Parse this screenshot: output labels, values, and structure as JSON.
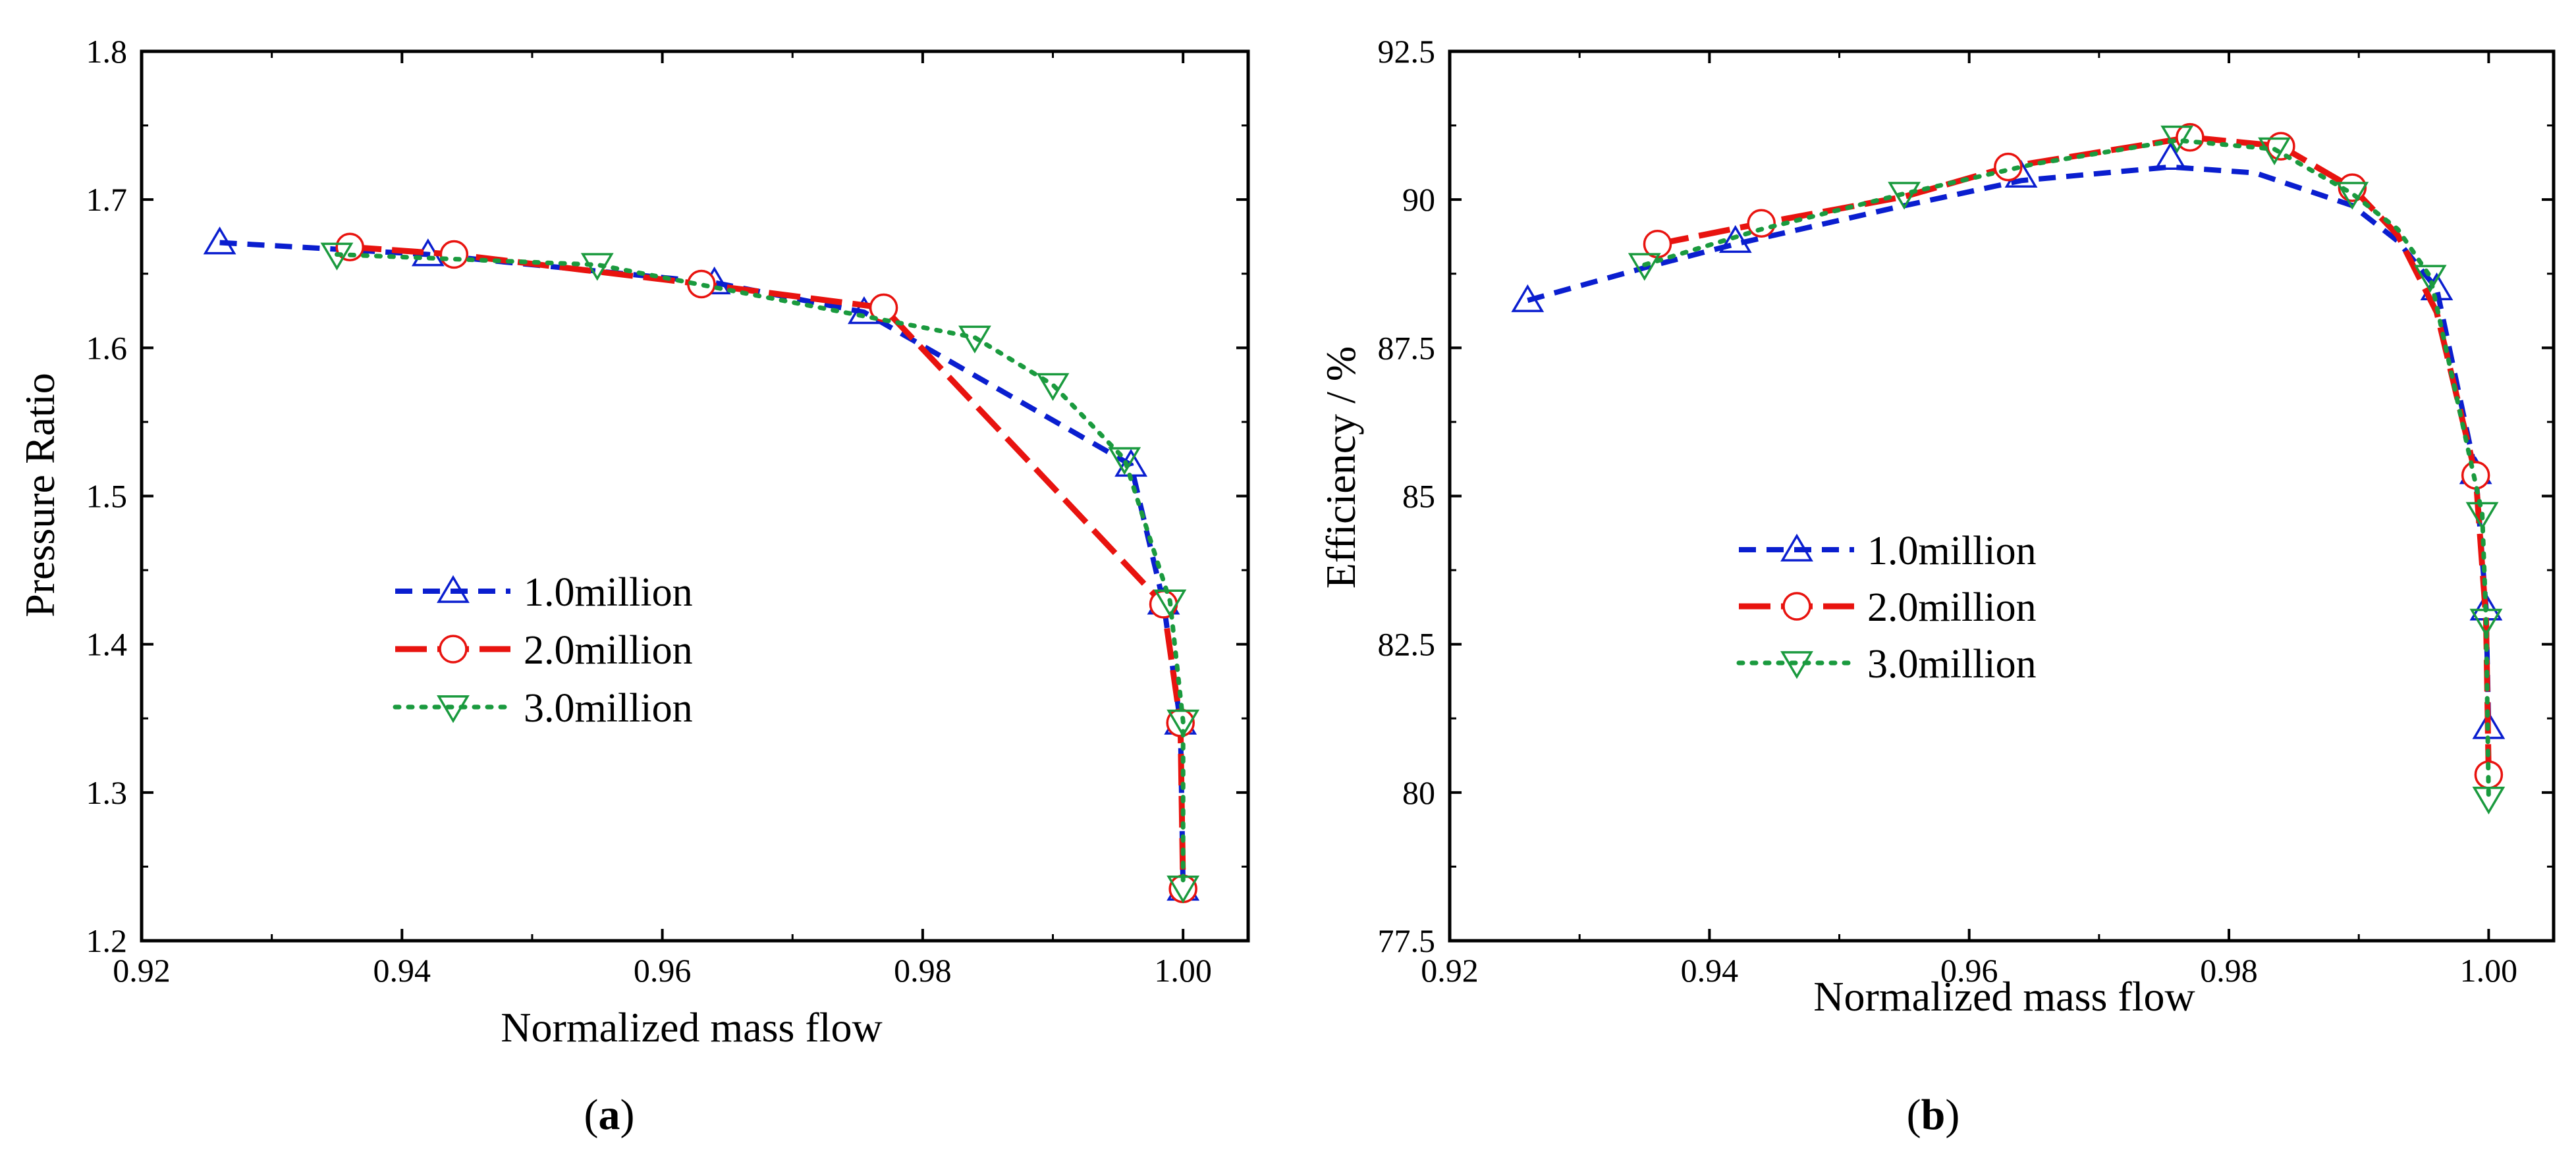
{
  "chart_data": [
    {
      "type": "line",
      "panel_label": "a",
      "xlabel": "Normalized mass flow",
      "ylabel": "Pressure Ratio",
      "xlim": [
        0.92,
        1.005
      ],
      "ylim": [
        1.2,
        1.8
      ],
      "xticks": [
        "0.92",
        "0.94",
        "0.96",
        "0.98",
        "1.00"
      ],
      "yticks": [
        "1.2",
        "1.3",
        "1.4",
        "1.5",
        "1.6",
        "1.7",
        "1.8"
      ],
      "grid": false,
      "legend_position": "center",
      "series": [
        {
          "name": "1.0million",
          "color": "#0a1ecf",
          "dash": "dashed",
          "marker": "triangle-up",
          "x": [
            0.926,
            0.942,
            0.964,
            0.9755,
            0.996,
            0.9985,
            0.9998,
            1.0
          ],
          "y": [
            1.671,
            1.663,
            1.644,
            1.624,
            1.521,
            1.428,
            1.347,
            1.235
          ]
        },
        {
          "name": "2.0million",
          "color": "#e8130f",
          "dash": "long-dash",
          "marker": "circle",
          "x": [
            0.936,
            0.944,
            0.963,
            0.977,
            0.9985,
            0.9998,
            1.0
          ],
          "y": [
            1.668,
            1.663,
            1.643,
            1.627,
            1.427,
            1.347,
            1.235
          ]
        },
        {
          "name": "3.0million",
          "color": "#1a9a3e",
          "dash": "dotted",
          "marker": "triangle-down",
          "x": [
            0.935,
            0.955,
            0.984,
            0.99,
            0.9955,
            0.999,
            1.0,
            1.0
          ],
          "y": [
            1.663,
            1.656,
            1.607,
            1.575,
            1.525,
            1.429,
            1.348,
            1.236
          ]
        }
      ]
    },
    {
      "type": "line",
      "panel_label": "b",
      "xlabel": "Normalized mass flow",
      "ylabel": "Efficiency / %",
      "xlim": [
        0.92,
        1.005
      ],
      "ylim": [
        77.5,
        92.5
      ],
      "xticks": [
        "0.92",
        "0.94",
        "0.96",
        "0.98",
        "1.00"
      ],
      "yticks": [
        "77.5",
        "80",
        "82.5",
        "85",
        "87.5",
        "90",
        "92.5"
      ],
      "grid": false,
      "legend_position": "center-left",
      "series": [
        {
          "name": "1.0million",
          "color": "#0a1ecf",
          "dash": "dashed",
          "marker": "triangle-up",
          "x": [
            0.926,
            0.942,
            0.964,
            0.9755,
            0.996,
            0.999,
            0.9998,
            1.0
          ],
          "y": [
            88.3,
            89.3,
            90.4,
            90.7,
            88.5,
            85.4,
            83.1,
            81.1
          ],
          "curve": [
            [
              0.926,
              88.3
            ],
            [
              0.935,
              88.85
            ],
            [
              0.942,
              89.25
            ],
            [
              0.954,
              89.85
            ],
            [
              0.964,
              90.32
            ],
            [
              0.9755,
              90.55
            ],
            [
              0.982,
              90.45
            ],
            [
              0.9895,
              89.9
            ],
            [
              0.993,
              89.3
            ],
            [
              0.996,
              88.5
            ],
            [
              0.999,
              85.4
            ],
            [
              0.9998,
              83.1
            ],
            [
              1.0,
              81.1
            ]
          ]
        },
        {
          "name": "2.0million",
          "color": "#e8130f",
          "dash": "long-dash",
          "marker": "circle",
          "x": [
            0.936,
            0.944,
            0.963,
            0.977,
            0.984,
            0.9895,
            0.999,
            1.0
          ],
          "y": [
            89.25,
            89.6,
            90.55,
            91.05,
            90.9,
            90.2,
            85.35,
            80.3
          ],
          "curve": [
            [
              0.936,
              89.25
            ],
            [
              0.944,
              89.6
            ],
            [
              0.955,
              90.05
            ],
            [
              0.963,
              90.55
            ],
            [
              0.977,
              91.05
            ],
            [
              0.984,
              90.9
            ],
            [
              0.9895,
              90.2
            ],
            [
              0.993,
              89.4
            ],
            [
              0.996,
              88.1
            ],
            [
              0.999,
              85.35
            ],
            [
              0.9998,
              82.9
            ],
            [
              1.0,
              80.3
            ]
          ]
        },
        {
          "name": "3.0million",
          "color": "#1a9a3e",
          "dash": "dotted",
          "marker": "triangle-down",
          "x": [
            0.935,
            0.955,
            0.976,
            0.9835,
            0.9895,
            0.9955,
            0.9995,
            0.9998,
            1.0
          ],
          "y": [
            88.9,
            90.1,
            91.05,
            90.85,
            90.1,
            88.7,
            84.7,
            82.9,
            79.9
          ],
          "curve": [
            [
              0.935,
              88.9
            ],
            [
              0.944,
              89.5
            ],
            [
              0.955,
              90.1
            ],
            [
              0.965,
              90.6
            ],
            [
              0.976,
              91.0
            ],
            [
              0.9835,
              90.85
            ],
            [
              0.9895,
              90.1
            ],
            [
              0.993,
              89.5
            ],
            [
              0.9955,
              88.7
            ],
            [
              0.9995,
              84.7
            ],
            [
              0.9998,
              82.9
            ],
            [
              1.0,
              79.9
            ]
          ]
        }
      ]
    }
  ]
}
